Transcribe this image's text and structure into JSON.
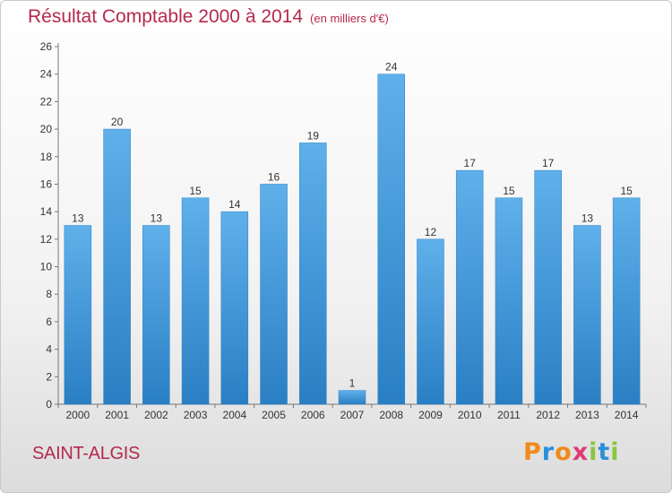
{
  "header": {
    "title": "Résultat Comptable 2000 à 2014",
    "unit": "(en milliers d'€)"
  },
  "footer": {
    "commune": "SAINT-ALGIS",
    "logo_letters": [
      "P",
      "r",
      "o",
      "x",
      "i",
      "t",
      "i"
    ]
  },
  "colors": {
    "title": "#b5294e",
    "bar_top": "#5fb0ea",
    "bar_bottom": "#2a7fc4",
    "logo": [
      "#f08a1a",
      "#2a8fd8",
      "#f08a1a",
      "#e23a73",
      "#8bc63f",
      "#2a8fd8",
      "#8bc63f"
    ]
  },
  "chart_data": {
    "type": "bar",
    "title": "Résultat Comptable 2000 à 2014",
    "subtitle": "(en milliers d'€)",
    "xlabel": "",
    "ylabel": "",
    "categories": [
      "2000",
      "2001",
      "2002",
      "2003",
      "2004",
      "2005",
      "2006",
      "2007",
      "2008",
      "2009",
      "2010",
      "2011",
      "2012",
      "2013",
      "2014"
    ],
    "values": [
      13,
      20,
      13,
      15,
      14,
      16,
      19,
      1,
      24,
      12,
      17,
      15,
      17,
      13,
      15
    ],
    "ylim": [
      0,
      26
    ],
    "yticks": [
      0,
      2,
      4,
      6,
      8,
      10,
      12,
      14,
      16,
      18,
      20,
      22,
      24,
      26
    ],
    "grid": false,
    "legend": "none"
  }
}
